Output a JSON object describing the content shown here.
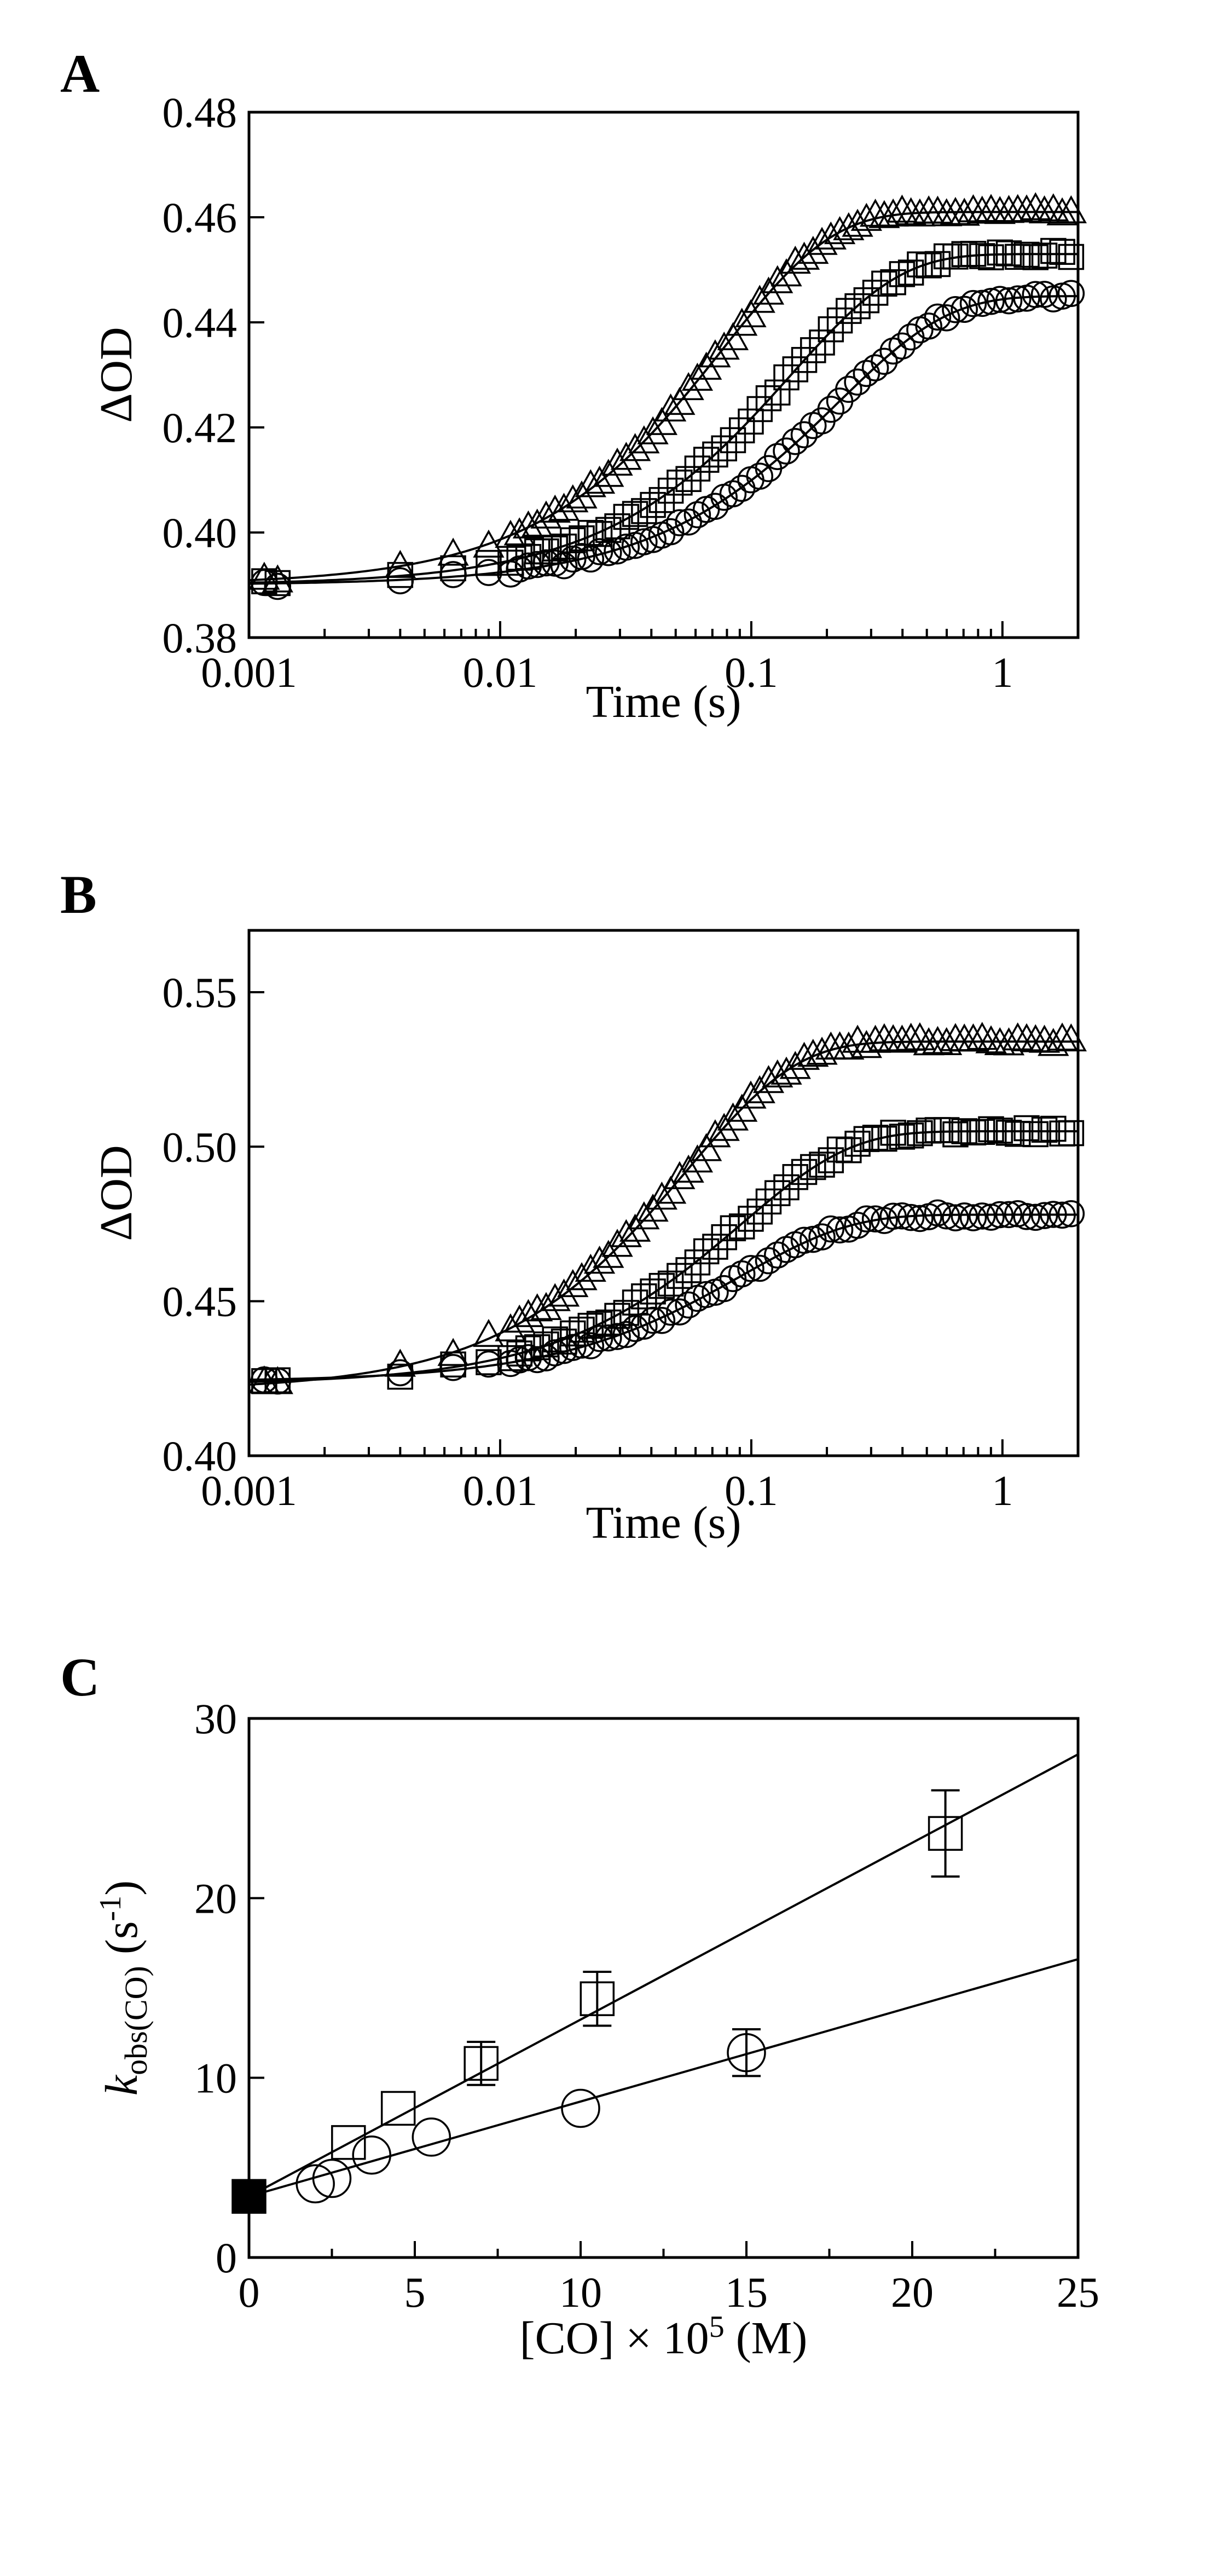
{
  "chart_data": [
    {
      "panel": "A",
      "type": "scatter",
      "xscale": "log",
      "xlim": [
        0.001,
        2
      ],
      "ylim": [
        0.38,
        0.48
      ],
      "xticks": [
        0.001,
        0.01,
        0.1,
        1
      ],
      "xtick_labels": [
        "0.001",
        "0.01",
        "0.1",
        "1"
      ],
      "yticks": [
        0.38,
        0.4,
        0.42,
        0.44,
        0.46,
        0.48
      ],
      "ytick_labels": [
        "0.38",
        "0.40",
        "0.42",
        "0.44",
        "0.46",
        "0.48"
      ],
      "xlabel": "Time (s)",
      "ylabel": "ΔOD",
      "series": [
        {
          "name": "triangle",
          "marker": "triangle",
          "y0": 0.39,
          "amp": 0.071,
          "k": 13.0
        },
        {
          "name": "square",
          "marker": "square",
          "y0": 0.39,
          "amp": 0.063,
          "k": 7.0
        },
        {
          "name": "circle",
          "marker": "circle",
          "y0": 0.39,
          "amp": 0.055,
          "k": 4.5
        }
      ]
    },
    {
      "panel": "B",
      "type": "scatter",
      "xscale": "log",
      "xlim": [
        0.001,
        2
      ],
      "ylim": [
        0.4,
        0.57
      ],
      "xticks": [
        0.001,
        0.01,
        0.1,
        1
      ],
      "xtick_labels": [
        "0.001",
        "0.01",
        "0.1",
        "1"
      ],
      "yticks": [
        0.4,
        0.45,
        0.5,
        0.55
      ],
      "ytick_labels": [
        "0.40",
        "0.45",
        "0.50",
        "0.55"
      ],
      "xlabel": "Time (s)",
      "ylabel": "ΔOD",
      "series": [
        {
          "name": "triangle",
          "marker": "triangle",
          "y0": 0.421,
          "amp": 0.113,
          "k": 18.0
        },
        {
          "name": "square",
          "marker": "square",
          "y0": 0.423,
          "amp": 0.082,
          "k": 11.0
        },
        {
          "name": "circle",
          "marker": "circle",
          "y0": 0.424,
          "amp": 0.054,
          "k": 11.0
        }
      ]
    },
    {
      "panel": "C",
      "type": "scatter",
      "xlim": [
        0,
        25
      ],
      "ylim": [
        0,
        30
      ],
      "xticks": [
        0,
        5,
        10,
        15,
        20,
        25
      ],
      "xtick_labels": [
        "0",
        "5",
        "10",
        "15",
        "20",
        "25"
      ],
      "yticks": [
        0,
        10,
        20,
        30
      ],
      "ytick_labels": [
        "0",
        "10",
        "20",
        "30"
      ],
      "xlabel_parts": [
        "[CO] × 10",
        "5",
        " (M)"
      ],
      "ylabel_parts": [
        "k",
        "obs(CO)",
        " (s",
        "-1",
        ")"
      ],
      "series": [
        {
          "name": "square",
          "marker": "square",
          "x": [
            3,
            4.5,
            7,
            10.5,
            21
          ],
          "y": [
            6.4,
            8.3,
            10.8,
            14.4,
            23.6
          ],
          "err": [
            0,
            0,
            1.2,
            1.5,
            2.4
          ],
          "fit": [
            [
              0,
              3.4
            ],
            [
              25,
              28.0
            ]
          ]
        },
        {
          "name": "circle",
          "marker": "circle",
          "x": [
            2,
            2.5,
            3.7,
            5.5,
            10,
            15
          ],
          "y": [
            4.1,
            4.4,
            5.7,
            6.7,
            8.3,
            11.4
          ],
          "err": [
            0,
            0,
            0,
            0,
            0,
            1.3
          ],
          "fit": [
            [
              0,
              3.4
            ],
            [
              25,
              16.6
            ]
          ]
        },
        {
          "name": "intercept",
          "marker": "filled-square",
          "x": [
            0
          ],
          "y": [
            3.4
          ],
          "err": [
            0
          ]
        }
      ]
    }
  ]
}
